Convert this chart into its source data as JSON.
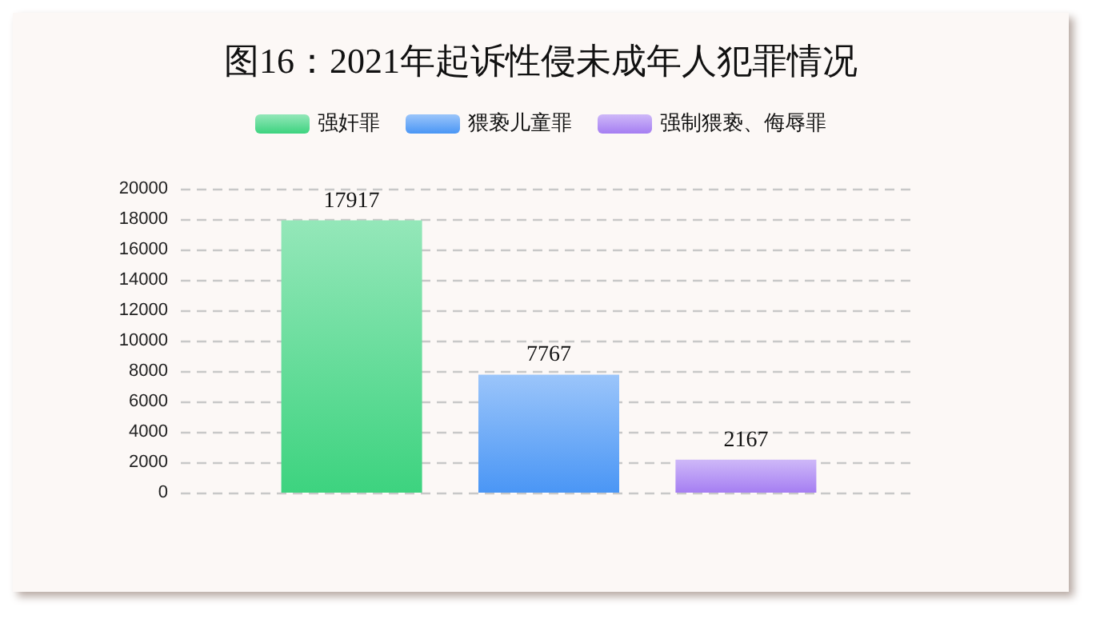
{
  "chart_data": {
    "type": "bar",
    "title": "图16：2021年起诉性侵未成年人犯罪情况",
    "categories": [
      null
    ],
    "series": [
      {
        "name": "强奸罪",
        "color": "#3dd37f",
        "values": [
          17917
        ]
      },
      {
        "name": "猥亵儿童罪",
        "color": "#4a96f5",
        "values": [
          7767
        ]
      },
      {
        "name": "强制猥亵、侮辱罪",
        "color": "#a57ef2",
        "values": [
          2167
        ]
      }
    ],
    "ylim": [
      0,
      20000
    ],
    "yticks": [
      0,
      2000,
      4000,
      6000,
      8000,
      10000,
      12000,
      14000,
      16000,
      18000,
      20000
    ],
    "grid": "y",
    "legend": "top",
    "data_labels": true
  }
}
